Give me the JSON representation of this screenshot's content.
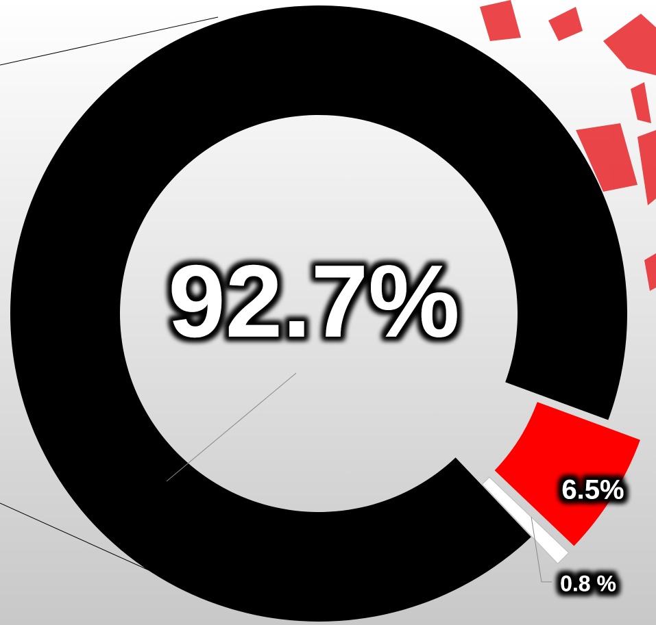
{
  "chart_data": {
    "type": "donut",
    "values": [
      92.7,
      6.5,
      0.8
    ],
    "value_labels": [
      "92.7%",
      "6.5%",
      "0.8 %"
    ],
    "colors": [
      "#000000",
      "#ff0000",
      "#ffffff"
    ]
  }
}
